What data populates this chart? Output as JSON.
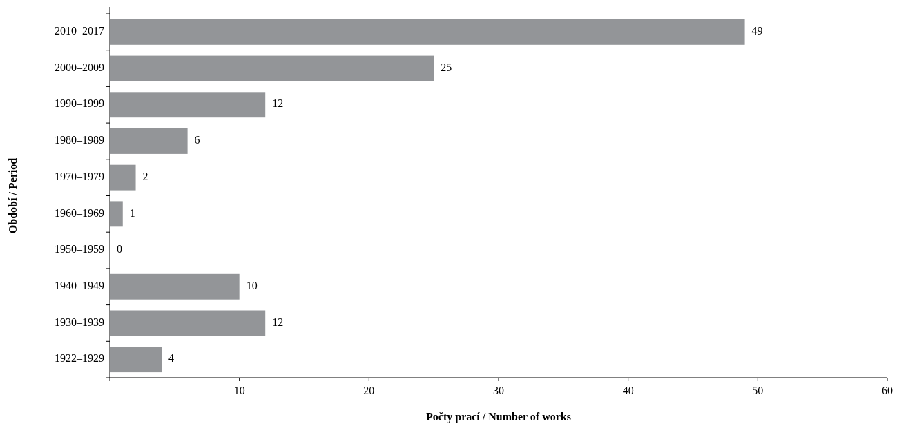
{
  "chart_data": {
    "type": "bar",
    "orientation": "horizontal",
    "xlabel": "Počty prací / Number of works",
    "ylabel": "Období / Period",
    "categories": [
      "2010–2017",
      "2000–2009",
      "1990–1999",
      "1980–1989",
      "1970–1979",
      "1960–1969",
      "1950–1959",
      "1940–1949",
      "1930–1939",
      "1922–1929"
    ],
    "values": [
      49,
      25,
      12,
      6,
      2,
      1,
      0,
      10,
      12,
      4
    ],
    "color": "#939598",
    "data_labels": true,
    "xlim": [
      0,
      60
    ],
    "xticks": [
      {
        "value": 0,
        "label": null
      },
      10,
      20,
      30,
      40,
      50,
      60
    ],
    "grid": false
  }
}
